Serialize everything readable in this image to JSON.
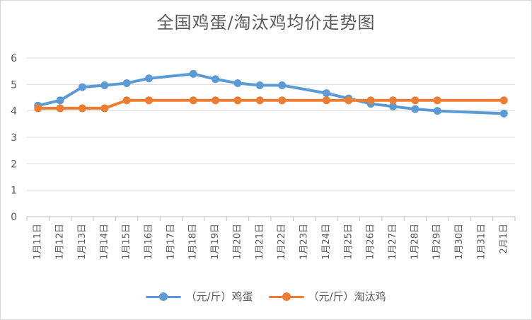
{
  "chart_data": {
    "type": "line",
    "title": "全国鸡蛋/淘汰鸡均价走势图",
    "categories": [
      "1月11日",
      "1月12日",
      "1月13日",
      "1月14日",
      "1月15日",
      "1月16日",
      "1月17日",
      "1月18日",
      "1月19日",
      "1月20日",
      "1月21日",
      "1月22日",
      "1月23日",
      "1月24日",
      "1月25日",
      "1月26日",
      "1月27日",
      "1月28日",
      "1月29日",
      "1月30日",
      "1月31日",
      "2月1日"
    ],
    "series": [
      {
        "name": "（元/斤）鸡蛋",
        "color": "#5b9bd5",
        "values": [
          4.2,
          4.4,
          4.9,
          4.97,
          5.05,
          5.23,
          null,
          5.4,
          5.2,
          5.05,
          4.97,
          4.97,
          null,
          4.67,
          4.47,
          4.27,
          4.17,
          4.07,
          4.0,
          null,
          null,
          3.9
        ]
      },
      {
        "name": "（元/斤）淘汰鸡",
        "color": "#ed7d31",
        "values": [
          4.1,
          4.1,
          4.1,
          4.1,
          4.4,
          4.4,
          null,
          4.4,
          4.4,
          4.4,
          4.4,
          4.4,
          null,
          4.4,
          4.4,
          4.4,
          4.4,
          4.4,
          4.4,
          null,
          null,
          4.4
        ]
      }
    ],
    "ylim": [
      0,
      6
    ],
    "yticks": [
      0,
      1,
      2,
      3,
      4,
      5,
      6
    ],
    "grid": true,
    "legend_position": "bottom"
  }
}
